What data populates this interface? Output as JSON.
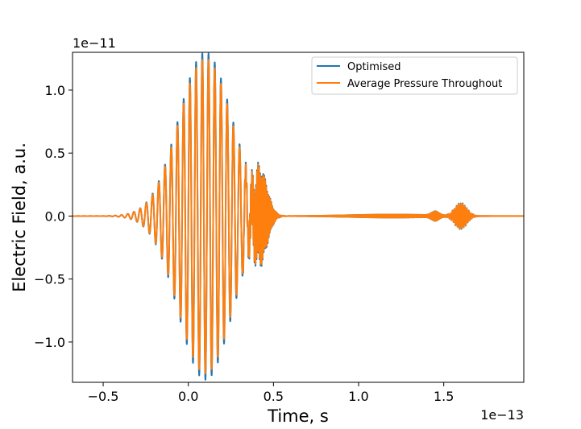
{
  "chart_data": {
    "type": "line",
    "title": "",
    "xlabel": "Time, s",
    "ylabel": "Electric Field, a.u.",
    "x_offset_text": "1e−13",
    "y_offset_text": "1e−11",
    "xlim": [
      -0.68,
      1.97
    ],
    "ylim": [
      -1.32,
      1.3
    ],
    "x_ticks": [
      -0.5,
      0.0,
      0.5,
      1.0,
      1.5
    ],
    "x_tick_labels": [
      "−0.5",
      "0.0",
      "0.5",
      "1.0",
      "1.5"
    ],
    "y_ticks": [
      -1.0,
      -0.5,
      0.0,
      0.5,
      1.0
    ],
    "y_tick_labels": [
      "−1.0",
      "−0.5",
      "0.0",
      "0.5",
      "1.0"
    ],
    "grid": false,
    "legend_position": "top-right",
    "series": [
      {
        "name": "Optimised",
        "color": "#1f77b4",
        "peak_amplitude": 1.25,
        "envelope_centre": 0.1,
        "envelope_width": 0.22,
        "period": 0.0365,
        "trailing_burst_centre": 1.6,
        "trailing_burst_amplitude": 0.1
      },
      {
        "name": "Average Pressure Throughout",
        "color": "#ff7f0e",
        "peak_amplitude": 1.25,
        "envelope_centre": 0.1,
        "envelope_width": 0.22,
        "period": 0.0365,
        "trailing_burst_centre": 1.6,
        "trailing_burst_amplitude": 0.1
      }
    ]
  }
}
